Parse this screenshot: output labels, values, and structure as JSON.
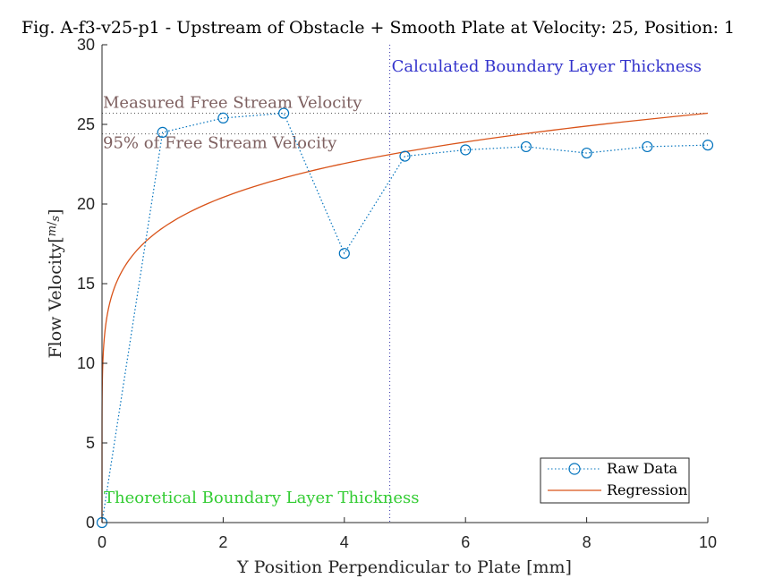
{
  "chart_data": {
    "type": "line",
    "title": "Fig. A-f3-v25-p1 - Upstream of Obstacle + Smooth Plate at Velocity: 25, Position: 1",
    "xlabel": "Y Position Perpendicular to Plate [mm]",
    "ylabel": "Flow Velocity [m/s]",
    "ylabel_main": "Flow Velocity",
    "ylabel_unit_num": "m",
    "ylabel_unit_den": "s",
    "xlim": [
      0,
      10
    ],
    "ylim": [
      0,
      30
    ],
    "xticks": [
      0,
      2,
      4,
      6,
      8,
      10
    ],
    "yticks": [
      0,
      5,
      10,
      15,
      20,
      25,
      30
    ],
    "grid": false,
    "legend_position": "bottom-right",
    "series": [
      {
        "name": "Raw Data",
        "style": "dotted-line-circle-markers",
        "color": "#0072BD",
        "x": [
          0,
          1,
          2,
          3,
          4,
          5,
          6,
          7,
          8,
          9,
          10
        ],
        "y": [
          0,
          24.5,
          25.4,
          25.7,
          16.9,
          23.0,
          23.4,
          23.6,
          23.2,
          23.6,
          23.7
        ]
      },
      {
        "name": "Regression",
        "style": "solid-line",
        "color": "#D95319",
        "model": "power-law",
        "x": [
          0,
          0.01,
          0.05,
          0.1,
          0.2,
          0.5,
          1,
          2,
          3,
          4,
          5,
          6,
          7,
          8,
          9,
          10
        ],
        "y": [
          0,
          11.2,
          13.9,
          15.3,
          16.8,
          19.0,
          18.3,
          20.4,
          21.6,
          22.5,
          23.2,
          23.8,
          24.3,
          24.8,
          25.2,
          25.7
        ]
      }
    ],
    "reference_lines": [
      {
        "orientation": "horizontal",
        "value": 25.7,
        "label": "Measured Free Stream Velocity",
        "color": "#7E6060"
      },
      {
        "orientation": "horizontal",
        "value": 24.4,
        "label": "95% of Free Stream Velocity",
        "color": "#7E6060"
      },
      {
        "orientation": "vertical",
        "value": 4.75,
        "label": "Calculated Boundary Layer Thickness",
        "color": "#3333CC"
      },
      {
        "orientation": "vertical",
        "value": 0,
        "label": "Theoretical Boundary Layer Thickness",
        "color": "#33CC33"
      }
    ]
  }
}
